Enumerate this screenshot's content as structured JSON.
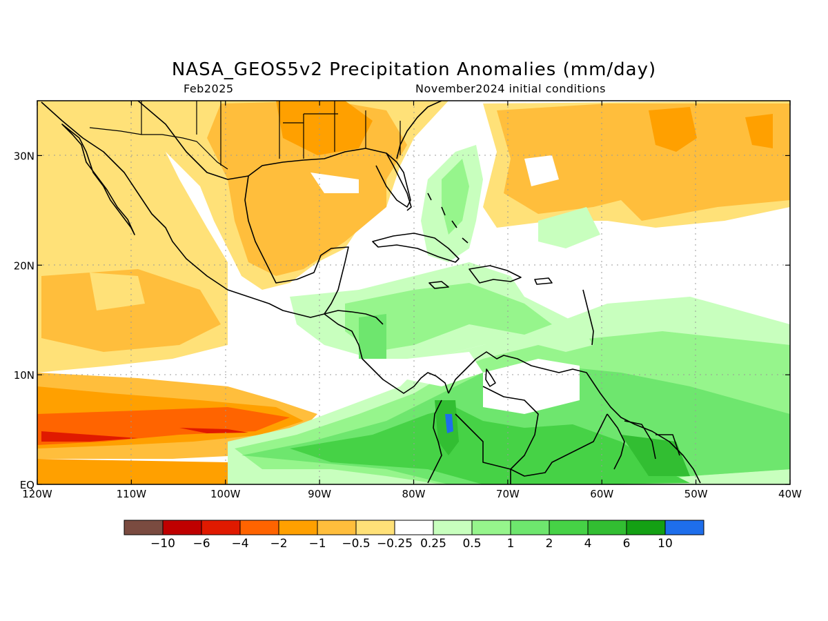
{
  "header": {
    "title": "NASA_GEOS5v2 Precipitation Anomalies (mm/day)",
    "valid_month": "Feb2025",
    "init_conditions": "November2024 initial conditions"
  },
  "map": {
    "region": {
      "lon_min": -120,
      "lon_max": -40,
      "lat_min": 0,
      "lat_max": 35
    },
    "lat_ticks": [
      {
        "value": 0,
        "label": "EQ"
      },
      {
        "value": 10,
        "label": "10N"
      },
      {
        "value": 20,
        "label": "20N"
      },
      {
        "value": 30,
        "label": "30N"
      }
    ],
    "lon_ticks": [
      {
        "value": -120,
        "label": "120W"
      },
      {
        "value": -110,
        "label": "110W"
      },
      {
        "value": -100,
        "label": "100W"
      },
      {
        "value": -90,
        "label": "90W"
      },
      {
        "value": -80,
        "label": "80W"
      },
      {
        "value": -70,
        "label": "70W"
      },
      {
        "value": -60,
        "label": "60W"
      },
      {
        "value": -50,
        "label": "50W"
      },
      {
        "value": -40,
        "label": "40W"
      }
    ],
    "grid": true,
    "coastlines": true
  },
  "legend": {
    "colors": [
      "#7a4b40",
      "#bf0000",
      "#e01a00",
      "#ff6400",
      "#ffa000",
      "#ffbe3c",
      "#ffe178",
      "#ffffff",
      "#c8ffbe",
      "#96f58c",
      "#6ee66e",
      "#46d246",
      "#32be32",
      "#14a014",
      "#1e6eeb"
    ],
    "labels": [
      "-10",
      "-6",
      "-4",
      "-2",
      "-1",
      "-0.5",
      "-0.25",
      "0.25",
      "0.5",
      "1",
      "2",
      "4",
      "6",
      "10"
    ]
  }
}
